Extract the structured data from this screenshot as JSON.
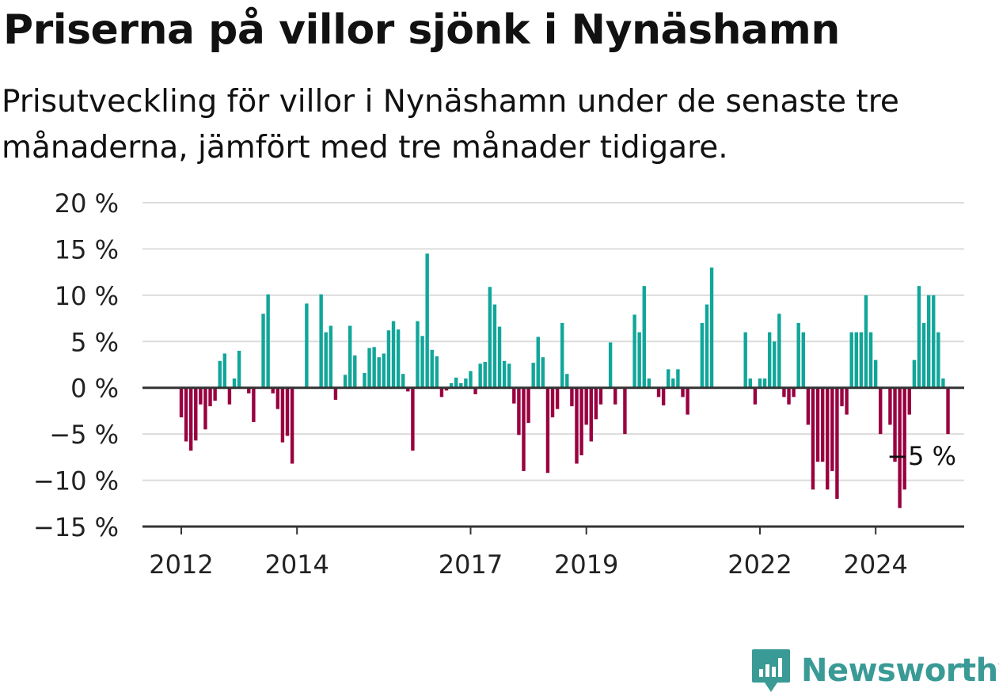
{
  "title": "Priserna på villor sjönk i Nynäshamn",
  "subtitle": "Prisutveckling för villor i Nynäshamn under de senaste tre månaderna, jämfört med tre månader tidigare.",
  "brand": {
    "name": "Newsworthy",
    "color": "#3a9a96",
    "icon": "newsworthy-logo-icon"
  },
  "colors": {
    "positive": "#11a69a",
    "negative": "#990040",
    "grid": "#dcdcdc",
    "axis": "#333333"
  },
  "chart_data": {
    "type": "bar",
    "title": "Priserna på villor sjönk i Nynäshamn",
    "ylim": [
      -15,
      20
    ],
    "yticks": [
      20,
      15,
      10,
      5,
      0,
      -5,
      -10,
      -15
    ],
    "ytick_labels": [
      "20 %",
      "15 %",
      "10 %",
      "5 %",
      "0 %",
      "−5 %",
      "−10 %",
      "−15 %"
    ],
    "xtick_labels": [
      {
        "label": "2012",
        "x": 2012.0
      },
      {
        "label": "2014",
        "x": 2014.0
      },
      {
        "label": "2017",
        "x": 2017.0
      },
      {
        "label": "2019",
        "x": 2019.0
      },
      {
        "label": "2022",
        "x": 2022.0
      },
      {
        "label": "2024",
        "x": 2024.0
      }
    ],
    "x_start": 2012.0,
    "x_step": 0.08333,
    "grid": true,
    "last_value_label": "−5 %",
    "values": [
      -3.2,
      -5.8,
      -6.8,
      -5.7,
      -1.8,
      -4.5,
      -2.0,
      -1.4,
      2.9,
      3.7,
      -1.8,
      1.0,
      4.0,
      0.0,
      -0.6,
      -3.7,
      0.0,
      8.0,
      10.1,
      -0.6,
      -2.3,
      -5.9,
      -5.2,
      -8.2,
      0.0,
      0.0,
      9.1,
      0.0,
      0.0,
      10.1,
      6.0,
      6.7,
      -1.3,
      0.0,
      1.4,
      6.7,
      3.5,
      0.0,
      1.6,
      4.3,
      4.4,
      3.3,
      3.7,
      6.2,
      7.2,
      6.3,
      1.5,
      -0.4,
      -6.8,
      7.2,
      5.6,
      14.5,
      4.1,
      3.4,
      -1.0,
      -0.3,
      0.5,
      1.1,
      0.5,
      1.0,
      1.8,
      -0.7,
      2.6,
      2.8,
      10.9,
      9.0,
      6.6,
      2.9,
      2.6,
      -1.7,
      -5.1,
      -9.0,
      -3.8,
      2.7,
      5.5,
      3.3,
      -9.2,
      -3.2,
      -2.3,
      7.0,
      1.5,
      -2.0,
      -8.2,
      -7.3,
      -4.0,
      -5.8,
      -3.4,
      -1.8,
      0.0,
      4.9,
      -1.8,
      0.0,
      -5.0,
      0.0,
      7.9,
      6.0,
      11.0,
      1.0,
      0.0,
      -1.0,
      -1.9,
      2.0,
      1.0,
      2.0,
      -1.0,
      -2.9,
      0.0,
      0.0,
      7.0,
      9.0,
      13.0,
      0.0,
      0.0,
      0.0,
      0.0,
      0.0,
      0.0,
      6.0,
      1.0,
      -1.8,
      1.0,
      1.0,
      6.0,
      5.0,
      8.0,
      -1.0,
      -1.8,
      -1.0,
      7.0,
      6.0,
      -4.0,
      -11.0,
      -8.0,
      -8.0,
      -11.0,
      -9.0,
      -12.0,
      -2.0,
      -2.9,
      6.0,
      6.0,
      6.0,
      10.0,
      6.0,
      3.0,
      -5.0,
      0.0,
      -4.0,
      -8.0,
      -13.0,
      -11.0,
      -2.9,
      3.0,
      11.0,
      7.0,
      10.0,
      10.0,
      6.0,
      1.0,
      -5.0
    ]
  }
}
